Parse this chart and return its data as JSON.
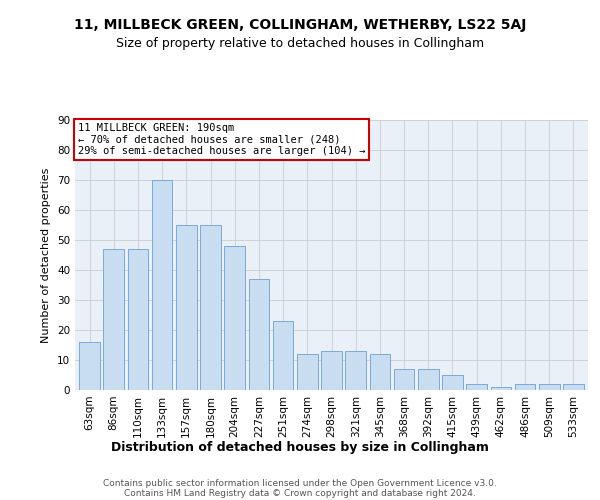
{
  "title": "11, MILLBECK GREEN, COLLINGHAM, WETHERBY, LS22 5AJ",
  "subtitle": "Size of property relative to detached houses in Collingham",
  "xlabel": "Distribution of detached houses by size in Collingham",
  "ylabel": "Number of detached properties",
  "categories": [
    "63sqm",
    "86sqm",
    "110sqm",
    "133sqm",
    "157sqm",
    "180sqm",
    "204sqm",
    "227sqm",
    "251sqm",
    "274sqm",
    "298sqm",
    "321sqm",
    "345sqm",
    "368sqm",
    "392sqm",
    "415sqm",
    "439sqm",
    "462sqm",
    "486sqm",
    "509sqm",
    "533sqm"
  ],
  "values": [
    16,
    47,
    47,
    70,
    55,
    55,
    48,
    37,
    23,
    12,
    13,
    13,
    12,
    7,
    7,
    5,
    2,
    1,
    2,
    2,
    2
  ],
  "bar_color": "#c9ddf0",
  "bar_edge_color": "#6a9fd8",
  "annotation_line1": "11 MILLBECK GREEN: 190sqm",
  "annotation_line2": "← 70% of detached houses are smaller (248)",
  "annotation_line3": "29% of semi-detached houses are larger (104) →",
  "annotation_box_facecolor": "#ffffff",
  "annotation_box_edgecolor": "#cc0000",
  "ylim": [
    0,
    90
  ],
  "yticks": [
    0,
    10,
    20,
    30,
    40,
    50,
    60,
    70,
    80,
    90
  ],
  "grid_color": "#cccccc",
  "background_color": "#eaf0f8",
  "footer_line1": "Contains HM Land Registry data © Crown copyright and database right 2024.",
  "footer_line2": "Contains public sector information licensed under the Open Government Licence v3.0.",
  "title_fontsize": 10,
  "subtitle_fontsize": 9,
  "ylabel_fontsize": 8,
  "xlabel_fontsize": 9,
  "tick_fontsize": 7.5,
  "annotation_fontsize": 7.5,
  "footer_fontsize": 6.5
}
